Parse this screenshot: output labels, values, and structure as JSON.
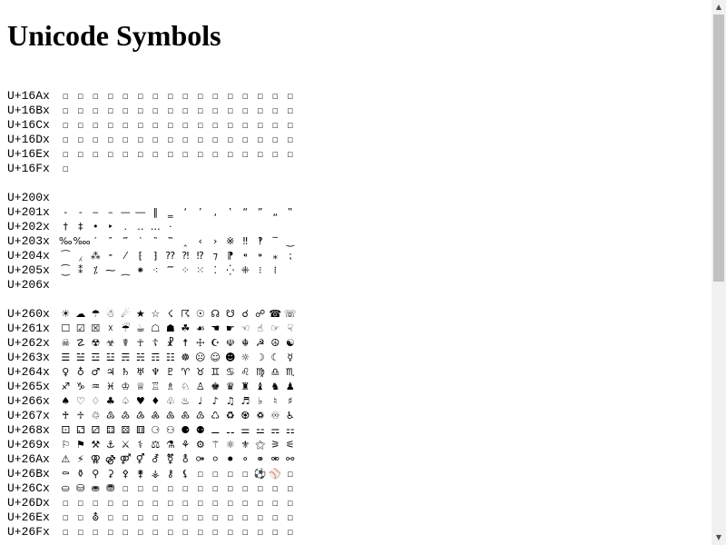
{
  "title": "Unicode Symbols",
  "missing_glyph": "▫",
  "blocks": [
    {
      "rows": [
        {
          "label": "U+16Ax",
          "count": 16
        },
        {
          "label": "U+16Bx",
          "count": 16
        },
        {
          "label": "U+16Cx",
          "count": 16
        },
        {
          "label": "U+16Dx",
          "count": 16
        },
        {
          "label": "U+16Ex",
          "count": 16
        },
        {
          "label": "U+16Fx",
          "count": 1
        }
      ]
    },
    {
      "rows": [
        {
          "label": "U+200x",
          "glyphs": []
        },
        {
          "label": "U+201x",
          "glyphs": [
            "‐",
            "‑",
            "‒",
            "–",
            "—",
            "―",
            "‖",
            "‗",
            "‘",
            "’",
            "‚",
            "‛",
            "“",
            "”",
            "„",
            "‟"
          ]
        },
        {
          "label": "U+202x",
          "glyphs": [
            "†",
            "‡",
            "•",
            "‣",
            "․",
            "‥",
            "…",
            "‧"
          ]
        },
        {
          "label": "U+203x",
          "glyphs": [
            "‰",
            "‱",
            "′",
            "″",
            "‴",
            "‵",
            "‶",
            "‷",
            "‸",
            "‹",
            "›",
            "※",
            "‼",
            "‽",
            "‾",
            "‿"
          ]
        },
        {
          "label": "U+204x",
          "glyphs": [
            "⁀",
            "⁁",
            "⁂",
            "⁃",
            "⁄",
            "⁅",
            "⁆",
            "⁇",
            "⁈",
            "⁉",
            "⁊",
            "⁋",
            "⁌",
            "⁍",
            "⁎",
            "⁏"
          ]
        },
        {
          "label": "U+205x",
          "glyphs": [
            "⁐",
            "⁑",
            "⁒",
            "⁓",
            "⁔",
            "⁕",
            "⁖",
            "⁗",
            "⁘",
            "⁙",
            "⁚",
            "⁛",
            "⁜",
            "⁝",
            "⁞"
          ]
        },
        {
          "label": "U+206x",
          "glyphs": []
        }
      ]
    },
    {
      "rows": [
        {
          "label": "U+260x",
          "glyphs": [
            "☀",
            "☁",
            "☂",
            "☃",
            "☄",
            "★",
            "☆",
            "☇",
            "☈",
            "☉",
            "☊",
            "☋",
            "☌",
            "☍",
            "☎",
            "☏"
          ]
        },
        {
          "label": "U+261x",
          "glyphs": [
            "☐",
            "☑",
            "☒",
            "☓",
            "☔",
            "☕",
            "☖",
            "☗",
            "☘",
            "☙",
            "☚",
            "☛",
            "☜",
            "☝",
            "☞",
            "☟"
          ]
        },
        {
          "label": "U+262x",
          "glyphs": [
            "☠",
            "☡",
            "☢",
            "☣",
            "☤",
            "☥",
            "☦",
            "☧",
            "☨",
            "☩",
            "☪",
            "☫",
            "☬",
            "☭",
            "☮",
            "☯"
          ]
        },
        {
          "label": "U+263x",
          "glyphs": [
            "☰",
            "☱",
            "☲",
            "☳",
            "☴",
            "☵",
            "☶",
            "☷",
            "☸",
            "☹",
            "☺",
            "☻",
            "☼",
            "☽",
            "☾",
            "☿"
          ]
        },
        {
          "label": "U+264x",
          "glyphs": [
            "♀",
            "♁",
            "♂",
            "♃",
            "♄",
            "♅",
            "♆",
            "♇",
            "♈",
            "♉",
            "♊",
            "♋",
            "♌",
            "♍",
            "♎",
            "♏"
          ]
        },
        {
          "label": "U+265x",
          "glyphs": [
            "♐",
            "♑",
            "♒",
            "♓",
            "♔",
            "♕",
            "♖",
            "♗",
            "♘",
            "♙",
            "♚",
            "♛",
            "♜",
            "♝",
            "♞",
            "♟"
          ]
        },
        {
          "label": "U+266x",
          "glyphs": [
            "♠",
            "♡",
            "♢",
            "♣",
            "♤",
            "♥",
            "♦",
            "♧",
            "♨",
            "♩",
            "♪",
            "♫",
            "♬",
            "♭",
            "♮",
            "♯"
          ]
        },
        {
          "label": "U+267x",
          "glyphs": [
            "♰",
            "♱",
            "♲",
            "♳",
            "♴",
            "♵",
            "♶",
            "♷",
            "♸",
            "♹",
            "♺",
            "♻",
            "♼",
            "♽",
            "♾",
            "♿"
          ]
        },
        {
          "label": "U+268x",
          "glyphs": [
            "⚀",
            "⚁",
            "⚂",
            "⚃",
            "⚄",
            "⚅",
            "⚆",
            "⚇",
            "⚈",
            "⚉",
            "⚊",
            "⚋",
            "⚌",
            "⚍",
            "⚎",
            "⚏"
          ]
        },
        {
          "label": "U+269x",
          "glyphs": [
            "⚐",
            "⚑",
            "⚒",
            "⚓",
            "⚔",
            "⚕",
            "⚖",
            "⚗",
            "⚘",
            "⚙",
            "⚚",
            "⚛",
            "⚜",
            "⚝",
            "⚞",
            "⚟"
          ]
        },
        {
          "label": "U+26Ax",
          "glyphs": [
            "⚠",
            "⚡",
            "⚢",
            "⚣",
            "⚤",
            "⚥",
            "⚦",
            "⚧",
            "⚨",
            "⚩",
            "⚪",
            "⚫",
            "⚬",
            "⚭",
            "⚮",
            "⚯"
          ]
        },
        {
          "label": "U+26Bx",
          "glyphs": [
            "⚰",
            "⚱",
            "⚲",
            "⚳",
            "⚴",
            "⚵",
            "⚶",
            "⚷",
            "⚸",
            "▫",
            "▫",
            "▫",
            "▫",
            "⚽",
            "⚾",
            "▫"
          ]
        },
        {
          "label": "U+26Cx",
          "glyphs": [
            "⛀",
            "⛁",
            "⛂",
            "⛃",
            "▫",
            "▫",
            "▫",
            "▫",
            "▫",
            "▫",
            "▫",
            "▫",
            "▫",
            "▫",
            "▫",
            "▫"
          ]
        },
        {
          "label": "U+26Dx",
          "glyphs": [
            "▫",
            "▫",
            "▫",
            "▫",
            "▫",
            "▫",
            "▫",
            "▫",
            "▫",
            "▫",
            "▫",
            "▫",
            "▫",
            "▫",
            "▫",
            "▫"
          ]
        },
        {
          "label": "U+26Ex",
          "glyphs": [
            "▫",
            "▫",
            "⛢",
            "▫",
            "▫",
            "▫",
            "▫",
            "▫",
            "▫",
            "▫",
            "▫",
            "▫",
            "▫",
            "▫",
            "▫",
            "▫"
          ]
        },
        {
          "label": "U+26Fx",
          "glyphs": [
            "▫",
            "▫",
            "▫",
            "▫",
            "▫",
            "▫",
            "▫",
            "▫",
            "▫",
            "▫",
            "▫",
            "▫",
            "▫",
            "▫",
            "▫",
            "▫"
          ]
        }
      ]
    }
  ],
  "scrollbar": {
    "up_icon": "▲",
    "down_icon": "▼",
    "colors": {
      "track": "#f1f1f1",
      "thumb": "#c1c1c1",
      "arrow": "#505050"
    }
  }
}
